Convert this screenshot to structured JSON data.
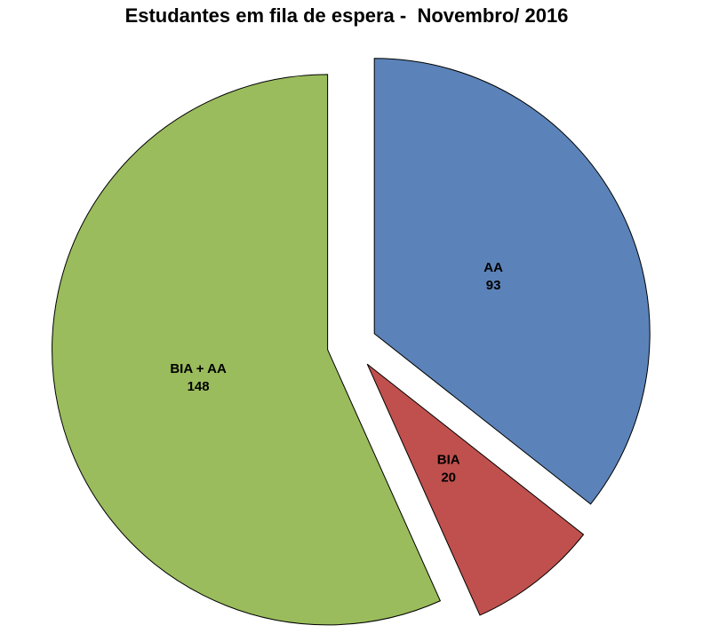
{
  "chart_data": {
    "type": "pie",
    "title": "Estudantes em fila de espera -  Novembro/ 2016",
    "slices": [
      {
        "label": "AA",
        "value": 93,
        "color": "#5B83B9"
      },
      {
        "label": "BIA",
        "value": 20,
        "color": "#C0504D"
      },
      {
        "label": "BIA + AA",
        "value": 148,
        "color": "#9ABC5C"
      }
    ],
    "start_angle_deg": 0,
    "direction": "clockwise",
    "exploded": true,
    "slice_border_color": "#000000",
    "background": "#FFFFFF",
    "labels": "name and value inside each slice, bold black, two lines",
    "legend": "none"
  }
}
